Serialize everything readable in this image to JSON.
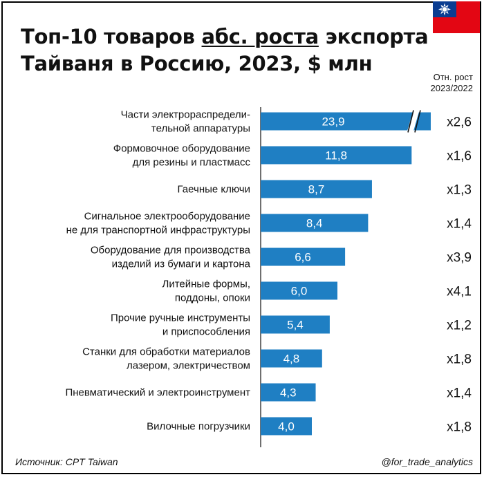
{
  "header": {
    "title_part1": "Топ-10 товаров ",
    "title_underlined": "абс. роста",
    "title_part2": " экспорта Тайваня в Россию, 2023, $ млн",
    "growth_column_header": [
      "Отн. рост",
      "2023/2022"
    ]
  },
  "footer": {
    "source": "Источник: CPT Taiwan",
    "handle": "@for_trade_analytics"
  },
  "colors": {
    "bar": "#1f7fc3",
    "bar_label": "#ffffff",
    "text": "#111111",
    "flag_red": "#e30613",
    "flag_blue": "#0b3d91"
  },
  "chart_data": {
    "type": "bar",
    "orientation": "horizontal",
    "categories": [
      [
        "Части электрораспредели-",
        "тельной аппаратуры"
      ],
      [
        "Формовочное оборудование",
        "для резины и пластмасс"
      ],
      [
        "Гаечные ключи"
      ],
      [
        "Сигнальное электрооборудование",
        "не для транспортной инфраструктуры"
      ],
      [
        "Оборудование для производства",
        "изделий из бумаги и картона"
      ],
      [
        "Литейные формы,",
        "поддоны, опоки"
      ],
      [
        "Прочие ручные инструменты",
        "и приспособления"
      ],
      [
        "Станки для обработки материалов",
        "лазером, электричеством"
      ],
      [
        "Пневматический и электроинструмент"
      ],
      [
        "Вилочные погрузчики"
      ]
    ],
    "values": [
      23.9,
      11.8,
      8.7,
      8.4,
      6.6,
      6.0,
      5.4,
      4.8,
      4.3,
      4.0
    ],
    "value_labels": [
      "23,9",
      "11,8",
      "8,7",
      "8,4",
      "6,6",
      "6,0",
      "5,4",
      "4,8",
      "4,3",
      "4,0"
    ],
    "relative_growth": [
      "x2,6",
      "x1,6",
      "x1,3",
      "x1,4",
      "x3,9",
      "x4,1",
      "x1,2",
      "x1,8",
      "x1,4",
      "x1,8"
    ],
    "axis_break_on": "Части электрораспредели-тельной аппаратуры"
  }
}
